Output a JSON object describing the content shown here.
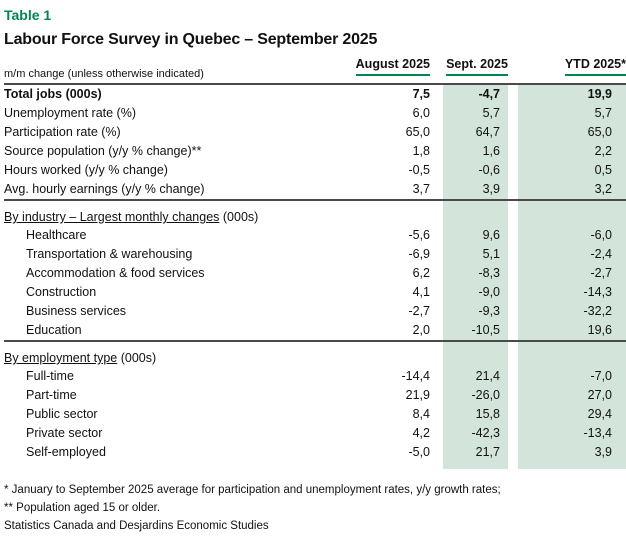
{
  "page": {
    "table_label": "Table 1",
    "title": "Labour Force Survey in Quebec – September 2025"
  },
  "colors": {
    "accent_green": "#00874e",
    "highlight_column_fill": "#d3e5da",
    "rule_gray": "#4a4a4a"
  },
  "chart_data": {
    "type": "table",
    "title": "Labour Force Survey in Quebec – September 2025",
    "unit_note": "m/m change (unless otherwise indicated)",
    "columns": [
      "August 2025",
      "Sept. 2025",
      "YTD 2025*"
    ],
    "highlighted_columns": [
      "Sept. 2025",
      "YTD 2025*"
    ],
    "sections": [
      {
        "name": "headline",
        "rows": [
          {
            "label": "Total jobs (000s)",
            "values": [
              "7,5",
              "-4,7",
              "19,9"
            ]
          },
          {
            "label": "Unemployment rate (%)",
            "values": [
              "6,0",
              "5,7",
              "5,7"
            ]
          },
          {
            "label": "Participation rate (%)",
            "values": [
              "65,0",
              "64,7",
              "65,0"
            ]
          },
          {
            "label": "Source population (y/y % change)**",
            "values": [
              "1,8",
              "1,6",
              "2,2"
            ]
          },
          {
            "label": "Hours worked (y/y % change)",
            "values": [
              "-0,5",
              "-0,6",
              "0,5"
            ]
          },
          {
            "label": "Avg. hourly earnings (y/y % change)",
            "values": [
              "3,7",
              "3,9",
              "3,2"
            ]
          }
        ]
      },
      {
        "name": "by-industry",
        "heading": {
          "underlined": "By industry – Largest monthly changes",
          "suffix": " (000s)"
        },
        "rows": [
          {
            "label": "Healthcare",
            "values": [
              "-5,6",
              "9,6",
              "-6,0"
            ]
          },
          {
            "label": "Transportation & warehousing",
            "values": [
              "-6,9",
              "5,1",
              "-2,4"
            ]
          },
          {
            "label": "Accommodation & food services",
            "values": [
              "6,2",
              "-8,3",
              "-2,7"
            ]
          },
          {
            "label": "Construction",
            "values": [
              "4,1",
              "-9,0",
              "-14,3"
            ]
          },
          {
            "label": "Business services",
            "values": [
              "-2,7",
              "-9,3",
              "-32,2"
            ]
          },
          {
            "label": "Education",
            "values": [
              "2,0",
              "-10,5",
              "19,6"
            ]
          }
        ]
      },
      {
        "name": "by-employment-type",
        "heading": {
          "underlined": "By employment type",
          "suffix": " (000s)"
        },
        "rows": [
          {
            "label": "Full-time",
            "values": [
              "-14,4",
              "21,4",
              "-7,0"
            ]
          },
          {
            "label": "Part-time",
            "values": [
              "21,9",
              "-26,0",
              "27,0"
            ]
          },
          {
            "label": "Public sector",
            "values": [
              "8,4",
              "15,8",
              "29,4"
            ]
          },
          {
            "label": "Private sector",
            "values": [
              "4,2",
              "-42,3",
              "-13,4"
            ]
          },
          {
            "label": "Self-employed",
            "values": [
              "-5,0",
              "21,7",
              "3,9"
            ]
          }
        ]
      }
    ],
    "footnotes": [
      "* January to September 2025 average for participation and unemployment rates, y/y growth rates;",
      "** Population aged 15 or older.",
      "Statistics Canada and Desjardins Economic Studies"
    ]
  }
}
